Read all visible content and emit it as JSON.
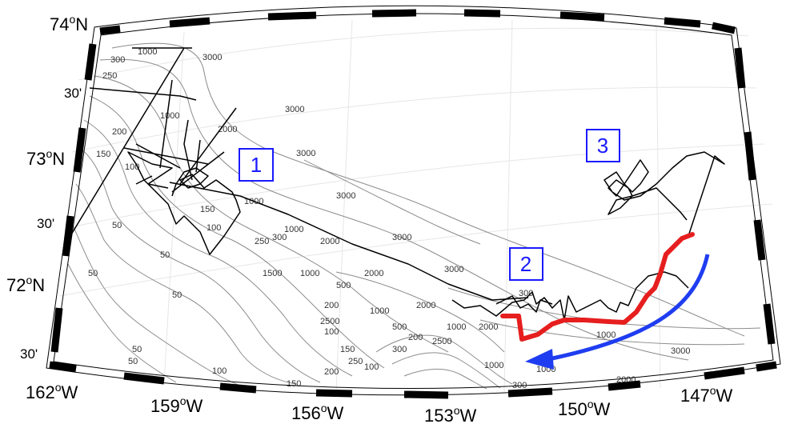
{
  "map": {
    "lat_labels": [
      {
        "text": "74",
        "sup": "o",
        "suffix": "N",
        "minute": false
      },
      {
        "text": "30'",
        "minute": true
      },
      {
        "text": "73",
        "sup": "o",
        "suffix": "N",
        "minute": false
      },
      {
        "text": "30'",
        "minute": true
      },
      {
        "text": "72",
        "sup": "o",
        "suffix": "N",
        "minute": false
      },
      {
        "text": "30'",
        "minute": true
      }
    ],
    "lon_labels": [
      {
        "text": "162",
        "sup": "o",
        "suffix": "W"
      },
      {
        "text": "159",
        "sup": "o",
        "suffix": "W"
      },
      {
        "text": "156",
        "sup": "o",
        "suffix": "W"
      },
      {
        "text": "153",
        "sup": "o",
        "suffix": "W"
      },
      {
        "text": "150",
        "sup": "o",
        "suffix": "W"
      },
      {
        "text": "147",
        "sup": "o",
        "suffix": "W"
      }
    ],
    "regions": [
      "1",
      "2",
      "3"
    ],
    "contour_labels": [
      "300",
      "1000",
      "3000",
      "250",
      "200",
      "150",
      "100",
      "50",
      "2000",
      "1500",
      "500",
      "2500"
    ],
    "colors": {
      "frame": "#000000",
      "contours": "#8c8c8c",
      "grid": "#e6e6e6",
      "track": "#000000",
      "highlight_track": "#e61e1e",
      "arrow": "#1f3df0",
      "region_box": "#1a1aff"
    }
  }
}
